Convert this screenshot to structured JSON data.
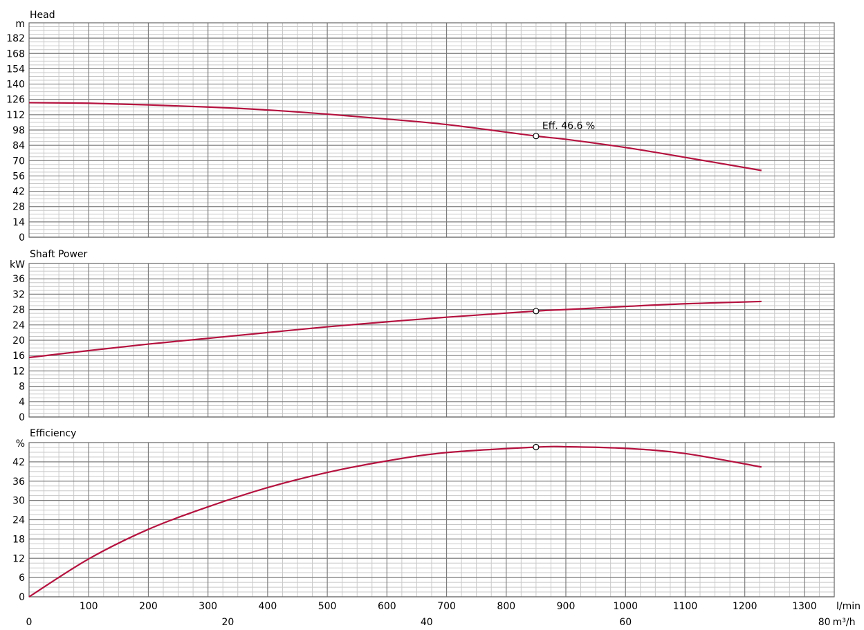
{
  "chart_data": [
    {
      "type": "line",
      "title": "Head",
      "ylabel": "m",
      "ylim": [
        0,
        196
      ],
      "yticks": [
        0,
        14,
        28,
        42,
        56,
        70,
        84,
        98,
        112,
        126,
        140,
        154,
        168,
        182
      ],
      "xlim": [
        0,
        1350
      ],
      "grid": true,
      "series": [
        {
          "color": "#b5123f",
          "points": [
            [
              0,
              123
            ],
            [
              100,
              122.5
            ],
            [
              200,
              121
            ],
            [
              300,
              119
            ],
            [
              400,
              116.3
            ],
            [
              500,
              112.5
            ],
            [
              600,
              108
            ],
            [
              700,
              103
            ],
            [
              850,
              92.5
            ],
            [
              900,
              89.5
            ],
            [
              1000,
              82
            ],
            [
              1100,
              73
            ],
            [
              1228,
              61
            ]
          ]
        }
      ],
      "operating_point": {
        "x": 850,
        "y": 92.5
      },
      "annotation": "Eff. 46.6 %"
    },
    {
      "type": "line",
      "title": "Shaft Power",
      "ylabel": "kW",
      "ylim": [
        0,
        40
      ],
      "yticks": [
        0,
        4,
        8,
        12,
        16,
        20,
        24,
        28,
        32,
        36
      ],
      "xlim": [
        0,
        1350
      ],
      "grid": true,
      "series": [
        {
          "color": "#b5123f",
          "points": [
            [
              0,
              15.5
            ],
            [
              100,
              17.3
            ],
            [
              200,
              19
            ],
            [
              300,
              20.5
            ],
            [
              400,
              22
            ],
            [
              500,
              23.5
            ],
            [
              600,
              24.8
            ],
            [
              700,
              26
            ],
            [
              850,
              27.6
            ],
            [
              900,
              28
            ],
            [
              1000,
              28.8
            ],
            [
              1100,
              29.5
            ],
            [
              1228,
              30.1
            ]
          ]
        }
      ],
      "operating_point": {
        "x": 850,
        "y": 27.6
      }
    },
    {
      "type": "line",
      "title": "Efficiency",
      "ylabel": "%",
      "ylim": [
        0,
        48
      ],
      "yticks": [
        0,
        6,
        12,
        18,
        24,
        30,
        36,
        42
      ],
      "xlim": [
        0,
        1350
      ],
      "grid": true,
      "series": [
        {
          "color": "#b5123f",
          "points": [
            [
              0,
              0
            ],
            [
              100,
              11.8
            ],
            [
              200,
              21
            ],
            [
              300,
              28
            ],
            [
              400,
              34
            ],
            [
              500,
              38.7
            ],
            [
              600,
              42.3
            ],
            [
              700,
              44.9
            ],
            [
              850,
              46.6
            ],
            [
              900,
              46.7
            ],
            [
              1000,
              46.2
            ],
            [
              1100,
              44.6
            ],
            [
              1228,
              40.4
            ]
          ]
        }
      ],
      "operating_point": {
        "x": 850,
        "y": 46.6
      }
    }
  ],
  "x_axis": {
    "xlim": [
      0,
      1350
    ],
    "primary_unit": "l/min",
    "primary_ticks": [
      100,
      200,
      300,
      400,
      500,
      600,
      700,
      800,
      900,
      1000,
      1100,
      1200,
      1300
    ],
    "secondary_unit": "m³/h",
    "secondary_ticks": [
      0,
      20,
      40,
      60,
      80
    ]
  }
}
